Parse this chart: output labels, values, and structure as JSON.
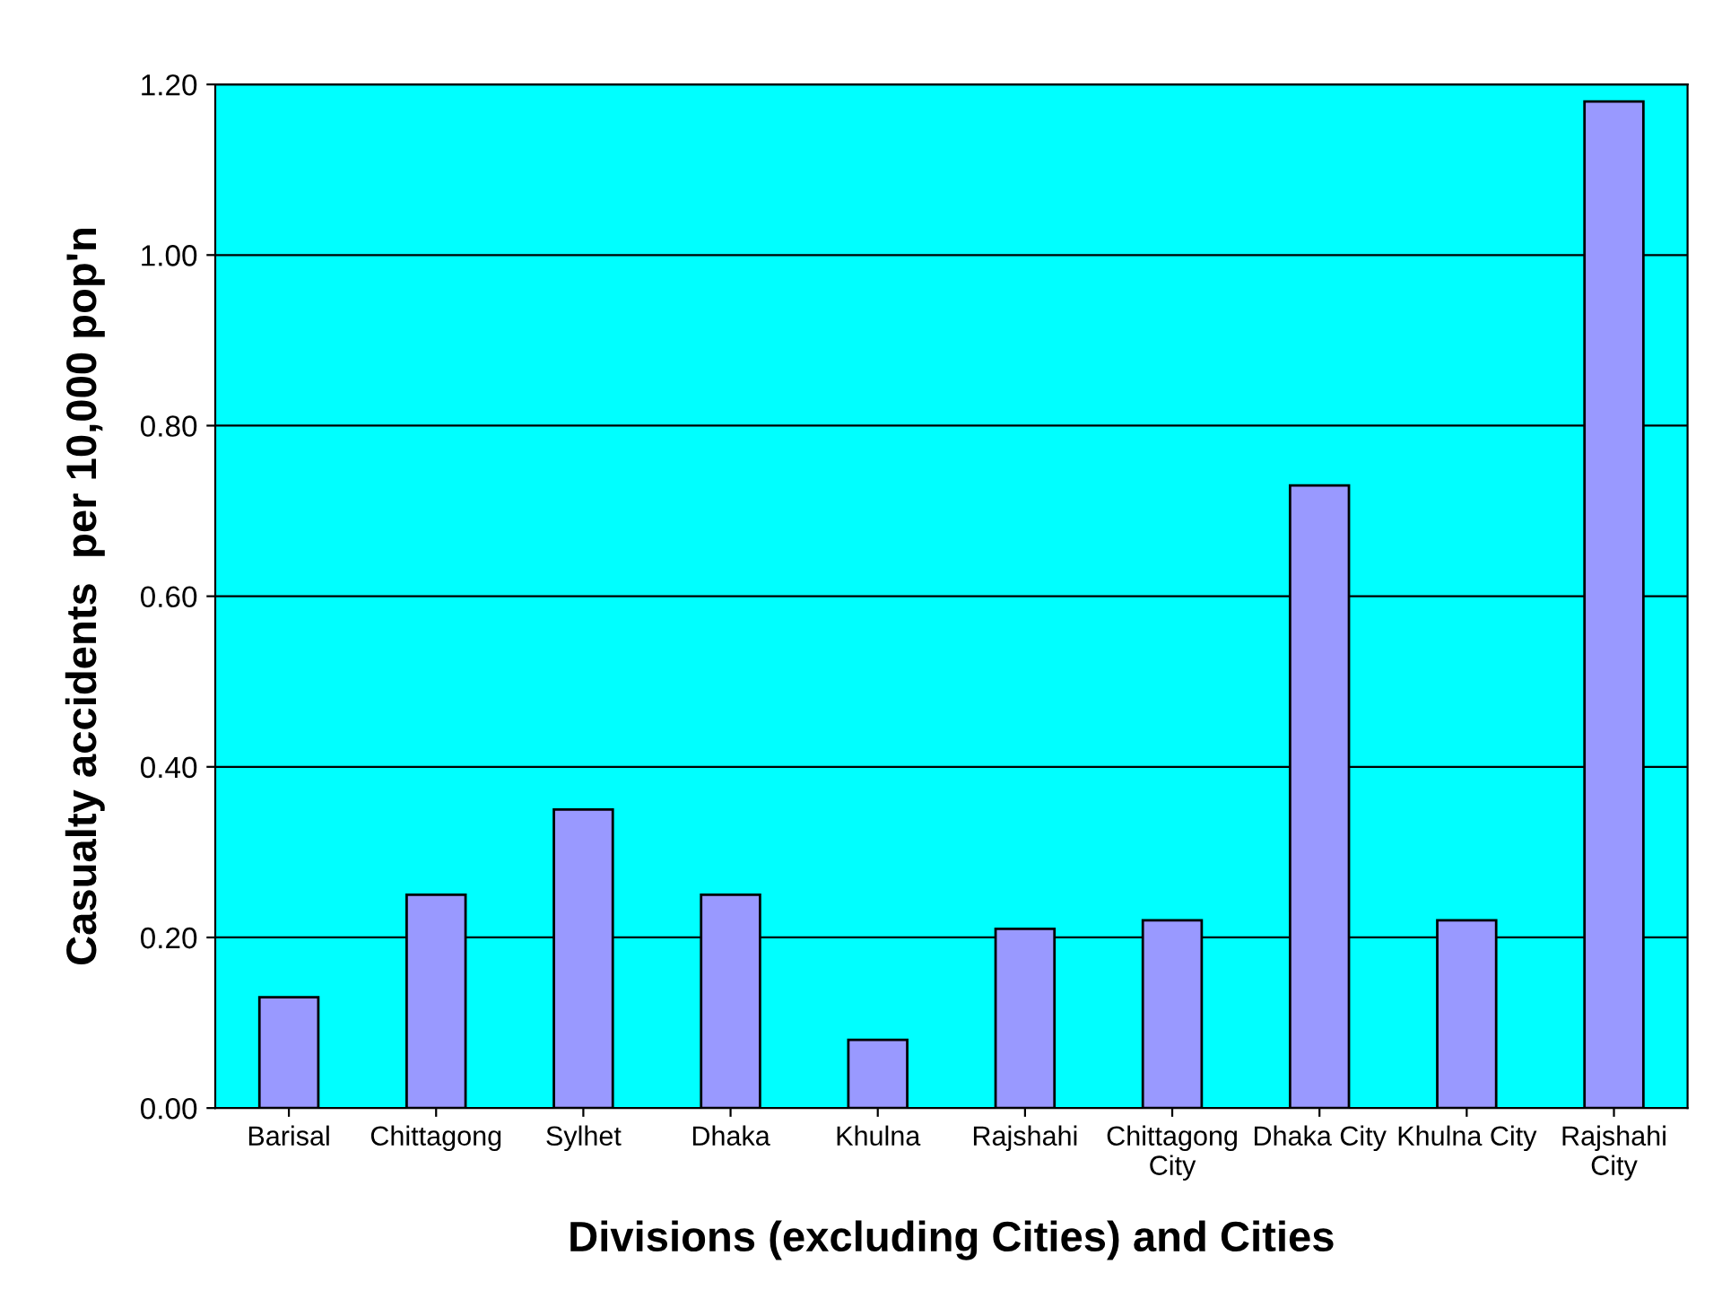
{
  "chart_data": {
    "type": "bar",
    "xlabel": "Divisions (excluding Cities) and Cities",
    "ylabel": "Casualty accidents  per 10,000 pop'n",
    "categories": [
      "Barisal",
      "Chittagong",
      "Sylhet",
      "Dhaka",
      "Khulna",
      "Rajshahi",
      "Chittagong\nCity",
      "Dhaka City",
      "Khulna City",
      "Rajshahi\nCity"
    ],
    "values": [
      0.13,
      0.25,
      0.35,
      0.25,
      0.08,
      0.21,
      0.22,
      0.73,
      0.22,
      1.18
    ],
    "color": "#9999ff",
    "ylim": [
      0,
      1.2
    ],
    "yticks": [
      {
        "value": 0,
        "label": "0.00"
      },
      {
        "value": 0.2,
        "label": "0.20"
      },
      {
        "value": 0.4,
        "label": "0.40"
      },
      {
        "value": 0.6,
        "label": "0.60"
      },
      {
        "value": 0.8,
        "label": "0.80"
      },
      {
        "value": 1.0,
        "label": "1.00"
      },
      {
        "value": 1.2,
        "label": "1.20"
      }
    ],
    "grid": "y"
  }
}
